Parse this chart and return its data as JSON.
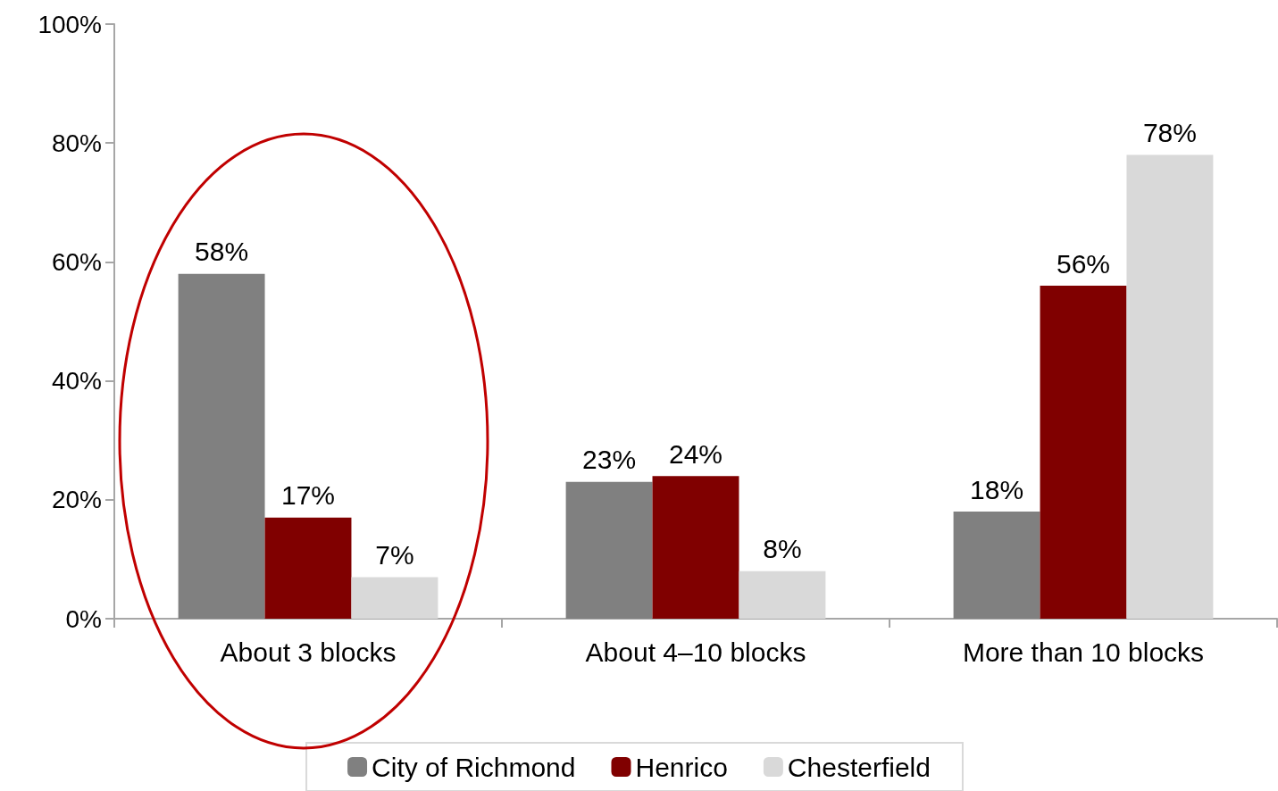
{
  "chart_data": {
    "type": "bar",
    "categories": [
      "About 3 blocks",
      "About 4–10 blocks",
      "More than 10 blocks"
    ],
    "series": [
      {
        "name": "City of Richmond",
        "color": "#808080",
        "values": [
          58,
          23,
          18
        ],
        "value_labels": [
          "58%",
          "23%",
          "18%"
        ]
      },
      {
        "name": "Henrico",
        "color": "#800000",
        "values": [
          17,
          24,
          56
        ],
        "value_labels": [
          "17%",
          "24%",
          "56%"
        ]
      },
      {
        "name": "Chesterfield",
        "color": "#d9d9d9",
        "values": [
          7,
          8,
          78
        ],
        "value_labels": [
          "7%",
          "8%",
          "78%"
        ]
      }
    ],
    "ylim": [
      0,
      100
    ],
    "yticks": [
      {
        "value": 0,
        "label": "0%"
      },
      {
        "value": 20,
        "label": "20%"
      },
      {
        "value": 40,
        "label": "40%"
      },
      {
        "value": 60,
        "label": "60%"
      },
      {
        "value": 80,
        "label": "80%"
      },
      {
        "value": 100,
        "label": "100%"
      }
    ],
    "grid": false,
    "legend": "bottom"
  }
}
